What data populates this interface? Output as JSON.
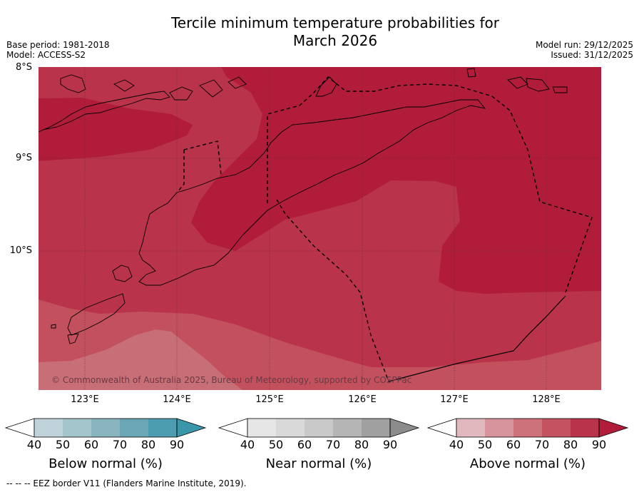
{
  "title_line1": "Tercile minimum temperature probabilities for",
  "title_line2": "March 2026",
  "base_period": "Base period: 1981-2018",
  "model": "Model: ACCESS-S2",
  "model_run": "Model run: 29/12/2025",
  "issued": "Issued: 31/12/2025",
  "copyright": "© Commonwealth of Australia 2025, Bureau of Meteorology, supported by COSPPac",
  "footer": "--  --  -- EEZ border V11 (Flanders Marine Institute, 2019).",
  "lat_labels": [
    "8°S",
    "9°S",
    "10°S"
  ],
  "lon_labels": [
    "123°E",
    "124°E",
    "125°E",
    "126°E",
    "127°E",
    "128°E"
  ],
  "colors": {
    "above_80": "#b9334a",
    "above_90": "#b01c3a",
    "above_70": "#c2505d",
    "above_60": "#c86e76",
    "land_line": "#000000"
  },
  "legends": [
    {
      "title": "Below normal (%)",
      "ticks": [
        "40",
        "50",
        "60",
        "70",
        "80",
        "90"
      ],
      "colors": [
        "#c0d3da",
        "#a4c5cb",
        "#89b5bf",
        "#6ba6b4",
        "#4b9daf",
        "#3a97aa"
      ]
    },
    {
      "title": "Near normal (%)",
      "ticks": [
        "40",
        "50",
        "60",
        "70",
        "80",
        "90"
      ],
      "colors": [
        "#e6e6e6",
        "#d9d9d9",
        "#c9c9c9",
        "#b5b5b5",
        "#a0a0a0",
        "#8c8c8c"
      ]
    },
    {
      "title": "Above normal (%)",
      "ticks": [
        "40",
        "50",
        "60",
        "70",
        "80",
        "90"
      ],
      "colors": [
        "#e2b8bf",
        "#d7949d",
        "#cd727b",
        "#c4535f",
        "#b9334a",
        "#b01c3a"
      ]
    }
  ]
}
